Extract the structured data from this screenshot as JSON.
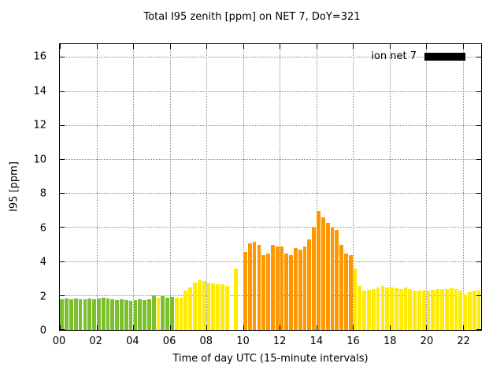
{
  "title": "Total I95 zenith [ppm] on NET 7, DoY=321",
  "xlabel": "Time of day UTC (15-minute intervals)",
  "ylabel": "I95 [ppm]",
  "legend": {
    "label": "ion net 7",
    "swatch_color": "#000000"
  },
  "chart_data": {
    "type": "bar",
    "x_unit": "hour of day UTC",
    "interval_minutes": 15,
    "start_time": "00:00",
    "xlim": [
      0,
      23
    ],
    "ylim": [
      0,
      16.8
    ],
    "grid": true,
    "legend_position": "top-right-inside",
    "palette": {
      "g": "#7cbf2e",
      "y": "#ffec00",
      "o": "#ff9800"
    },
    "xticks": [
      {
        "v": 0,
        "label": "00"
      },
      {
        "v": 2,
        "label": "02"
      },
      {
        "v": 4,
        "label": "04"
      },
      {
        "v": 6,
        "label": "06"
      },
      {
        "v": 8,
        "label": "08"
      },
      {
        "v": 10,
        "label": "10"
      },
      {
        "v": 12,
        "label": "12"
      },
      {
        "v": 14,
        "label": "14"
      },
      {
        "v": 16,
        "label": "16"
      },
      {
        "v": 18,
        "label": "18"
      },
      {
        "v": 20,
        "label": "20"
      },
      {
        "v": 22,
        "label": "22"
      }
    ],
    "yticks": [
      {
        "v": 0,
        "label": "0"
      },
      {
        "v": 2,
        "label": "2"
      },
      {
        "v": 4,
        "label": "4"
      },
      {
        "v": 6,
        "label": "6"
      },
      {
        "v": 8,
        "label": "8"
      },
      {
        "v": 10,
        "label": "10"
      },
      {
        "v": 12,
        "label": "12"
      },
      {
        "v": 14,
        "label": "14"
      },
      {
        "v": 16,
        "label": "16"
      }
    ],
    "bars": [
      {
        "v": 1.8,
        "c": "g"
      },
      {
        "v": 1.85,
        "c": "g"
      },
      {
        "v": 1.8,
        "c": "g"
      },
      {
        "v": 1.85,
        "c": "g"
      },
      {
        "v": 1.8,
        "c": "g"
      },
      {
        "v": 1.8,
        "c": "g"
      },
      {
        "v": 1.85,
        "c": "g"
      },
      {
        "v": 1.8,
        "c": "g"
      },
      {
        "v": 1.85,
        "c": "g"
      },
      {
        "v": 1.9,
        "c": "g"
      },
      {
        "v": 1.85,
        "c": "g"
      },
      {
        "v": 1.8,
        "c": "g"
      },
      {
        "v": 1.75,
        "c": "g"
      },
      {
        "v": 1.8,
        "c": "g"
      },
      {
        "v": 1.75,
        "c": "g"
      },
      {
        "v": 1.7,
        "c": "g"
      },
      {
        "v": 1.75,
        "c": "g"
      },
      {
        "v": 1.8,
        "c": "g"
      },
      {
        "v": 1.75,
        "c": "g"
      },
      {
        "v": 1.8,
        "c": "g"
      },
      {
        "v": 2.05,
        "c": "g"
      },
      {
        "v": 1.9,
        "c": "y"
      },
      {
        "v": 2.0,
        "c": "g"
      },
      {
        "v": 1.9,
        "c": "g"
      },
      {
        "v": 1.95,
        "c": "g"
      },
      {
        "v": 1.9,
        "c": "y"
      },
      {
        "v": 1.9,
        "c": "y"
      },
      {
        "v": 2.3,
        "c": "y"
      },
      {
        "v": 2.5,
        "c": "y"
      },
      {
        "v": 2.8,
        "c": "y"
      },
      {
        "v": 2.9,
        "c": "y"
      },
      {
        "v": 2.85,
        "c": "y"
      },
      {
        "v": 2.8,
        "c": "y"
      },
      {
        "v": 2.75,
        "c": "y"
      },
      {
        "v": 2.7,
        "c": "y"
      },
      {
        "v": 2.7,
        "c": "y"
      },
      {
        "v": 2.6,
        "c": "y"
      },
      {
        "v": 0,
        "c": "y"
      },
      {
        "v": 3.6,
        "c": "y"
      },
      {
        "v": 0,
        "c": "y"
      },
      {
        "v": 4.6,
        "c": "o"
      },
      {
        "v": 5.1,
        "c": "o"
      },
      {
        "v": 5.2,
        "c": "o"
      },
      {
        "v": 5.0,
        "c": "o"
      },
      {
        "v": 4.4,
        "c": "o"
      },
      {
        "v": 4.5,
        "c": "o"
      },
      {
        "v": 5.0,
        "c": "o"
      },
      {
        "v": 4.9,
        "c": "o"
      },
      {
        "v": 4.9,
        "c": "o"
      },
      {
        "v": 4.5,
        "c": "o"
      },
      {
        "v": 4.4,
        "c": "o"
      },
      {
        "v": 4.8,
        "c": "o"
      },
      {
        "v": 4.7,
        "c": "o"
      },
      {
        "v": 4.9,
        "c": "o"
      },
      {
        "v": 5.3,
        "c": "o"
      },
      {
        "v": 6.0,
        "c": "o"
      },
      {
        "v": 7.0,
        "c": "o"
      },
      {
        "v": 6.6,
        "c": "o"
      },
      {
        "v": 6.3,
        "c": "o"
      },
      {
        "v": 6.0,
        "c": "o"
      },
      {
        "v": 5.9,
        "c": "o"
      },
      {
        "v": 5.0,
        "c": "o"
      },
      {
        "v": 4.5,
        "c": "o"
      },
      {
        "v": 4.4,
        "c": "o"
      },
      {
        "v": 3.6,
        "c": "y"
      },
      {
        "v": 2.6,
        "c": "y"
      },
      {
        "v": 2.3,
        "c": "y"
      },
      {
        "v": 2.35,
        "c": "y"
      },
      {
        "v": 2.4,
        "c": "y"
      },
      {
        "v": 2.5,
        "c": "y"
      },
      {
        "v": 2.6,
        "c": "y"
      },
      {
        "v": 2.5,
        "c": "y"
      },
      {
        "v": 2.5,
        "c": "y"
      },
      {
        "v": 2.45,
        "c": "y"
      },
      {
        "v": 2.4,
        "c": "y"
      },
      {
        "v": 2.5,
        "c": "y"
      },
      {
        "v": 2.4,
        "c": "y"
      },
      {
        "v": 2.3,
        "c": "y"
      },
      {
        "v": 2.3,
        "c": "y"
      },
      {
        "v": 2.3,
        "c": "y"
      },
      {
        "v": 2.3,
        "c": "y"
      },
      {
        "v": 2.35,
        "c": "y"
      },
      {
        "v": 2.4,
        "c": "y"
      },
      {
        "v": 2.4,
        "c": "y"
      },
      {
        "v": 2.4,
        "c": "y"
      },
      {
        "v": 2.45,
        "c": "y"
      },
      {
        "v": 2.4,
        "c": "y"
      },
      {
        "v": 2.3,
        "c": "y"
      },
      {
        "v": 2.1,
        "c": "y"
      },
      {
        "v": 2.2,
        "c": "y"
      },
      {
        "v": 2.3,
        "c": "y"
      },
      {
        "v": 2.3,
        "c": "y"
      }
    ]
  }
}
